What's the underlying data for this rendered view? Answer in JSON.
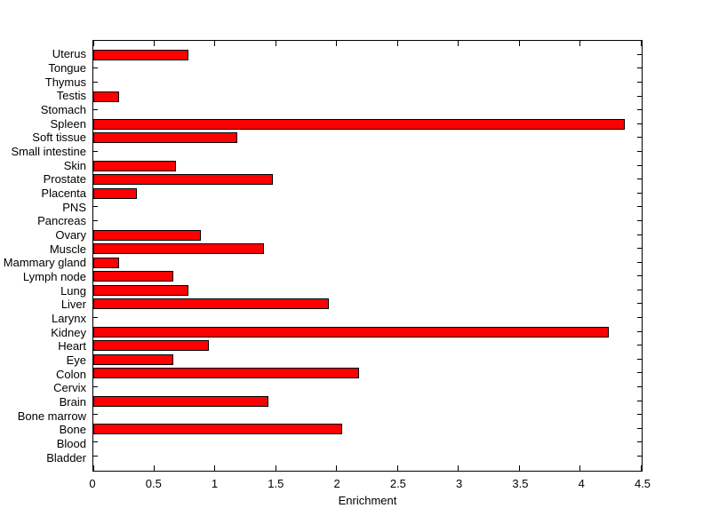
{
  "figure": {
    "background": "#ffffff",
    "axis_color": "#000000"
  },
  "chart_data": {
    "type": "bar",
    "orientation": "horizontal",
    "xlabel": "Enrichment",
    "xlim": [
      0,
      4.5
    ],
    "xticks": [
      0,
      0.5,
      1,
      1.5,
      2,
      2.5,
      3,
      3.5,
      4,
      4.5
    ],
    "xtick_labels": [
      "0",
      "0.5",
      "1",
      "1.5",
      "2",
      "2.5",
      "3",
      "3.5",
      "4",
      "4.5"
    ],
    "grid": false,
    "bar_color": "#ff0000",
    "bar_edge_color": "#000000",
    "categories": [
      "Uterus",
      "Tongue",
      "Thymus",
      "Testis",
      "Stomach",
      "Spleen",
      "Soft tissue",
      "Small intestine",
      "Skin",
      "Prostate",
      "Placenta",
      "PNS",
      "Pancreas",
      "Ovary",
      "Muscle",
      "Mammary gland",
      "Lymph node",
      "Lung",
      "Liver",
      "Larynx",
      "Kidney",
      "Heart",
      "Eye",
      "Colon",
      "Cervix",
      "Brain",
      "Bone marrow",
      "Bone",
      "Blood",
      "Bladder"
    ],
    "values": [
      0.78,
      0,
      0,
      0.21,
      0,
      4.36,
      1.18,
      0,
      0.68,
      1.47,
      0.36,
      0,
      0,
      0.88,
      1.4,
      0.21,
      0.66,
      0.78,
      1.93,
      0,
      4.23,
      0.95,
      0.66,
      2.18,
      0,
      1.44,
      0,
      2.04,
      0,
      0
    ]
  }
}
